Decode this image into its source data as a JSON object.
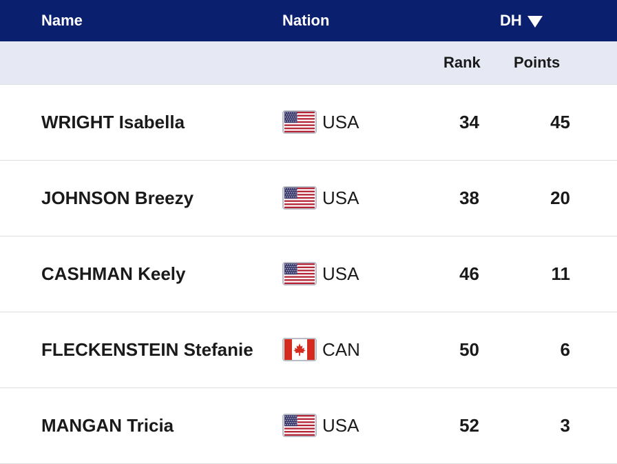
{
  "header": {
    "name_label": "Name",
    "nation_label": "Nation",
    "discipline_label": "DH",
    "sort_icon": "triangle-down-icon"
  },
  "subheader": {
    "rank_label": "Rank",
    "points_label": "Points"
  },
  "colors": {
    "header_bg": "#0a1f6e",
    "subheader_bg": "#e6e9f4",
    "usa_red": "#b22234",
    "usa_blue": "#3c3b6e",
    "can_red": "#d52b1e"
  },
  "rows": [
    {
      "name": "WRIGHT Isabella",
      "flag": "usa-flag-icon",
      "nation": "USA",
      "rank": "34",
      "points": "45"
    },
    {
      "name": "JOHNSON Breezy",
      "flag": "usa-flag-icon",
      "nation": "USA",
      "rank": "38",
      "points": "20"
    },
    {
      "name": "CASHMAN Keely",
      "flag": "usa-flag-icon",
      "nation": "USA",
      "rank": "46",
      "points": "11"
    },
    {
      "name": "FLECKENSTEIN Stefanie",
      "flag": "canada-flag-icon",
      "nation": "CAN",
      "rank": "50",
      "points": "6"
    },
    {
      "name": "MANGAN Tricia",
      "flag": "usa-flag-icon",
      "nation": "USA",
      "rank": "52",
      "points": "3"
    }
  ]
}
